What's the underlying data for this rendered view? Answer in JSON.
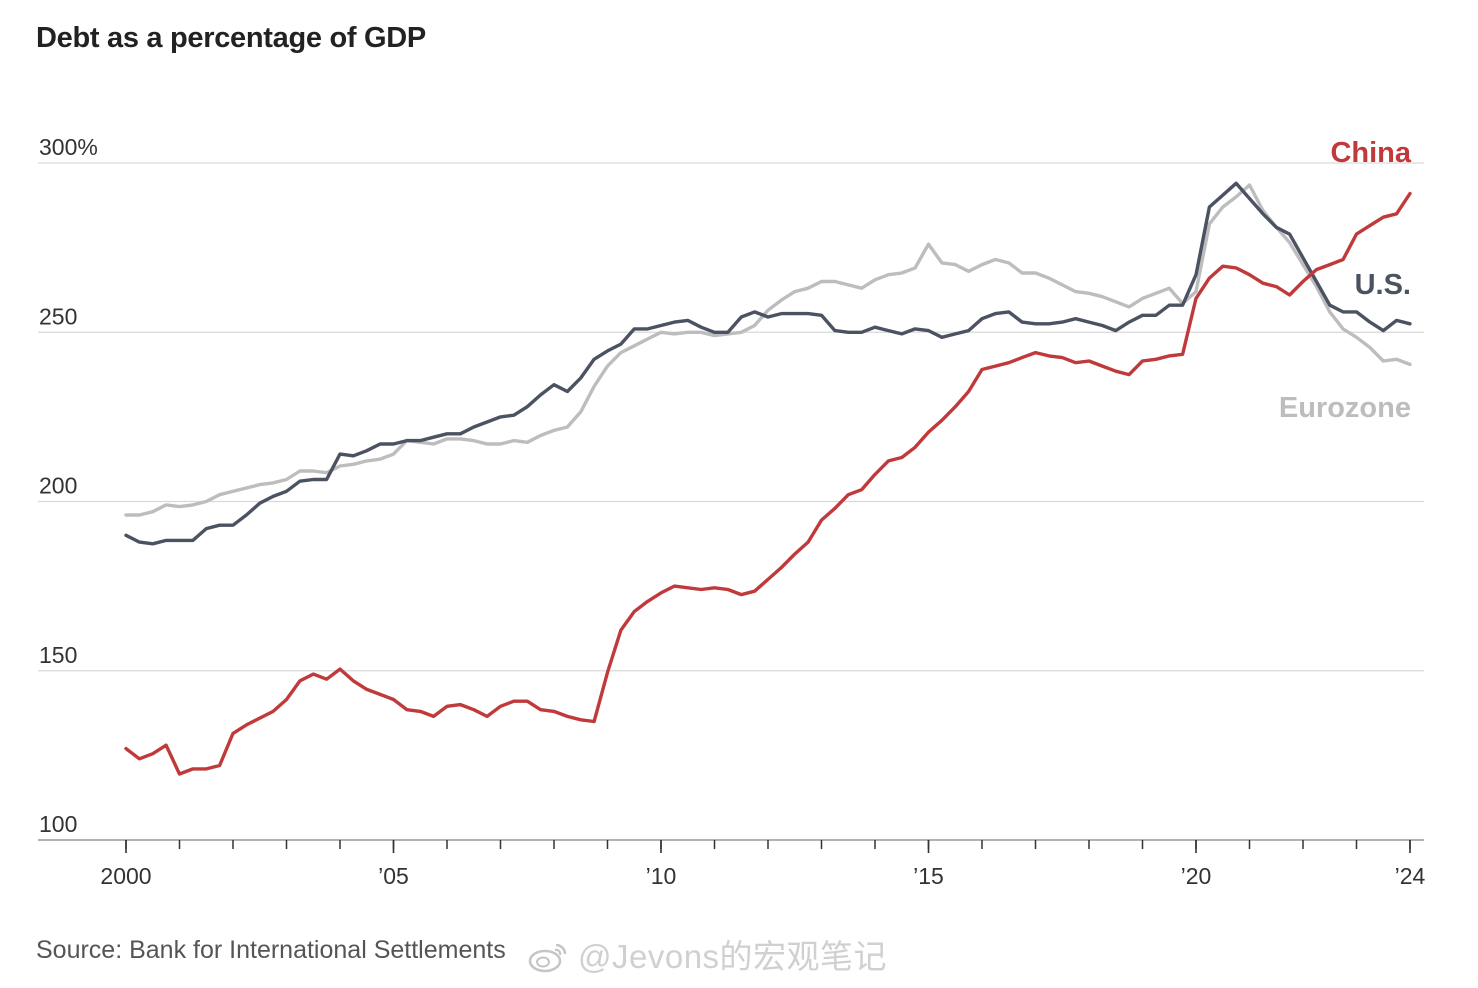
{
  "chart_data": {
    "type": "line",
    "title": "Debt as a percentage of GDP",
    "source": "Source: Bank for International Settlements",
    "xlim": [
      2000.0,
      2024.0
    ],
    "ylim": [
      100,
      300
    ],
    "y_ticks": [
      {
        "value": 300,
        "label": "300%"
      },
      {
        "value": 250,
        "label": "250"
      },
      {
        "value": 200,
        "label": "200"
      },
      {
        "value": 150,
        "label": "150"
      },
      {
        "value": 100,
        "label": "100"
      }
    ],
    "x_ticks": [
      {
        "value": 2000,
        "label": "2000"
      },
      {
        "value": 2005,
        "label": "’05"
      },
      {
        "value": 2010,
        "label": "’10"
      },
      {
        "value": 2015,
        "label": "’15"
      },
      {
        "value": 2020,
        "label": "’20"
      },
      {
        "value": 2024,
        "label": "’24"
      }
    ],
    "grid": true,
    "series": [
      {
        "name": "China",
        "color": "#c0393b",
        "x": [
          2000.0,
          2000.25,
          2000.5,
          2000.75,
          2001.0,
          2001.25,
          2001.5,
          2001.75,
          2002.0,
          2002.25,
          2002.5,
          2002.75,
          2003.0,
          2003.25,
          2003.5,
          2003.75,
          2004.0,
          2004.25,
          2004.5,
          2004.75,
          2005.0,
          2005.25,
          2005.5,
          2005.75,
          2006.0,
          2006.25,
          2006.5,
          2006.75,
          2007.0,
          2007.25,
          2007.5,
          2007.75,
          2008.0,
          2008.25,
          2008.5,
          2008.75,
          2009.0,
          2009.25,
          2009.5,
          2009.75,
          2010.0,
          2010.25,
          2010.5,
          2010.75,
          2011.0,
          2011.25,
          2011.5,
          2011.75,
          2012.0,
          2012.25,
          2012.5,
          2012.75,
          2013.0,
          2013.25,
          2013.5,
          2013.75,
          2014.0,
          2014.25,
          2014.5,
          2014.75,
          2015.0,
          2015.25,
          2015.5,
          2015.75,
          2016.0,
          2016.25,
          2016.5,
          2016.75,
          2017.0,
          2017.25,
          2017.5,
          2017.75,
          2018.0,
          2018.25,
          2018.5,
          2018.75,
          2019.0,
          2019.25,
          2019.5,
          2019.75,
          2020.0,
          2020.25,
          2020.5,
          2020.75,
          2021.0,
          2021.25,
          2021.5,
          2021.75,
          2022.0,
          2022.25,
          2022.5,
          2022.75,
          2023.0,
          2023.25,
          2023.5,
          2023.75,
          2024.0
        ],
        "values": [
          127,
          124,
          125.5,
          128,
          119.5,
          121,
          121,
          122,
          131.5,
          134,
          136,
          138,
          141.5,
          147,
          149,
          147.5,
          150.5,
          147,
          144.5,
          143,
          141.5,
          138.5,
          138,
          136.5,
          139.5,
          140,
          138.5,
          136.5,
          139.5,
          141,
          141,
          138.5,
          138,
          136.5,
          135.5,
          135,
          149.5,
          162,
          167.5,
          170.5,
          173,
          175,
          174.5,
          174,
          174.5,
          174,
          172.5,
          173.5,
          177,
          180.5,
          184.5,
          188,
          194.5,
          198,
          202,
          203.5,
          208,
          212,
          213,
          216,
          220.5,
          224,
          228,
          232.5,
          239,
          240,
          241,
          242.5,
          244,
          243,
          242.5,
          241,
          241.5,
          240,
          238.5,
          237.5,
          241.5,
          242,
          243,
          243.5,
          260,
          266,
          269.5,
          269,
          267,
          264.5,
          263.5,
          261,
          265,
          268.5,
          270,
          271.5,
          279,
          281.5,
          284,
          285,
          291
        ]
      },
      {
        "name": "U.S.",
        "color": "#4b5261",
        "x": [
          2000.0,
          2000.25,
          2000.5,
          2000.75,
          2001.0,
          2001.25,
          2001.5,
          2001.75,
          2002.0,
          2002.25,
          2002.5,
          2002.75,
          2003.0,
          2003.25,
          2003.5,
          2003.75,
          2004.0,
          2004.25,
          2004.5,
          2004.75,
          2005.0,
          2005.25,
          2005.5,
          2005.75,
          2006.0,
          2006.25,
          2006.5,
          2006.75,
          2007.0,
          2007.25,
          2007.5,
          2007.75,
          2008.0,
          2008.25,
          2008.5,
          2008.75,
          2009.0,
          2009.25,
          2009.5,
          2009.75,
          2010.0,
          2010.25,
          2010.5,
          2010.75,
          2011.0,
          2011.25,
          2011.5,
          2011.75,
          2012.0,
          2012.25,
          2012.5,
          2012.75,
          2013.0,
          2013.25,
          2013.5,
          2013.75,
          2014.0,
          2014.25,
          2014.5,
          2014.75,
          2015.0,
          2015.25,
          2015.5,
          2015.75,
          2016.0,
          2016.25,
          2016.5,
          2016.75,
          2017.0,
          2017.25,
          2017.5,
          2017.75,
          2018.0,
          2018.25,
          2018.5,
          2018.75,
          2019.0,
          2019.25,
          2019.5,
          2019.75,
          2020.0,
          2020.25,
          2020.5,
          2020.75,
          2021.0,
          2021.25,
          2021.5,
          2021.75,
          2022.0,
          2022.25,
          2022.5,
          2022.75,
          2023.0,
          2023.25,
          2023.5,
          2023.75,
          2024.0
        ],
        "values": [
          190,
          188,
          187.5,
          188.5,
          188.5,
          188.5,
          192,
          193,
          193,
          196,
          199.5,
          201.5,
          203,
          206,
          206.5,
          206.5,
          214,
          213.5,
          215,
          217,
          217,
          218,
          218,
          219,
          220,
          220,
          222,
          223.5,
          225,
          225.5,
          228,
          231.5,
          234.5,
          232.5,
          236.5,
          242,
          244.5,
          246.5,
          251,
          251,
          252,
          253,
          253.5,
          251.5,
          250,
          250,
          254.5,
          256,
          254.5,
          255.5,
          255.5,
          255.5,
          255,
          250.5,
          250,
          250,
          251.5,
          250.5,
          249.5,
          251,
          250.5,
          248.5,
          249.5,
          250.5,
          254,
          255.5,
          256,
          253,
          252.5,
          252.5,
          253,
          254,
          253,
          252,
          250.5,
          253,
          255,
          255,
          258,
          258,
          267,
          287,
          290.5,
          294,
          289.5,
          285,
          281,
          279,
          272,
          265,
          258,
          256,
          256,
          253,
          250.5,
          253.5,
          252.5
        ]
      },
      {
        "name": "Eurozone",
        "color": "#bdbdbd",
        "x": [
          2000.0,
          2000.25,
          2000.5,
          2000.75,
          2001.0,
          2001.25,
          2001.5,
          2001.75,
          2002.0,
          2002.25,
          2002.5,
          2002.75,
          2003.0,
          2003.25,
          2003.5,
          2003.75,
          2004.0,
          2004.25,
          2004.5,
          2004.75,
          2005.0,
          2005.25,
          2005.5,
          2005.75,
          2006.0,
          2006.25,
          2006.5,
          2006.75,
          2007.0,
          2007.25,
          2007.5,
          2007.75,
          2008.0,
          2008.25,
          2008.5,
          2008.75,
          2009.0,
          2009.25,
          2009.5,
          2009.75,
          2010.0,
          2010.25,
          2010.5,
          2010.75,
          2011.0,
          2011.25,
          2011.5,
          2011.75,
          2012.0,
          2012.25,
          2012.5,
          2012.75,
          2013.0,
          2013.25,
          2013.5,
          2013.75,
          2014.0,
          2014.25,
          2014.5,
          2014.75,
          2015.0,
          2015.25,
          2015.5,
          2015.75,
          2016.0,
          2016.25,
          2016.5,
          2016.75,
          2017.0,
          2017.25,
          2017.5,
          2017.75,
          2018.0,
          2018.25,
          2018.5,
          2018.75,
          2019.0,
          2019.25,
          2019.5,
          2019.75,
          2020.0,
          2020.25,
          2020.5,
          2020.75,
          2021.0,
          2021.25,
          2021.5,
          2021.75,
          2022.0,
          2022.25,
          2022.5,
          2022.75,
          2023.0,
          2023.25,
          2023.5,
          2023.75,
          2024.0
        ],
        "values": [
          196,
          196,
          197,
          199,
          198.5,
          199,
          200,
          202,
          203,
          204,
          205,
          205.5,
          206.5,
          209,
          209,
          208.5,
          210.5,
          211,
          212,
          212.5,
          214,
          218,
          217.5,
          217,
          218.5,
          218.5,
          218,
          217,
          217,
          218,
          217.5,
          219.5,
          221,
          222,
          226.5,
          234,
          240,
          244,
          246,
          248,
          250,
          249.5,
          250,
          250,
          249,
          249.5,
          250,
          252,
          256.5,
          259.5,
          262,
          263,
          265,
          265,
          264,
          263,
          265.5,
          267,
          267.5,
          269,
          276,
          270.5,
          270,
          268,
          270,
          271.5,
          270.5,
          267.5,
          267.5,
          266,
          264,
          262,
          261.5,
          260.5,
          259,
          257.5,
          260,
          261.5,
          263,
          258.5,
          262,
          282,
          287,
          290,
          293.5,
          286,
          281,
          276.5,
          270,
          263.5,
          256,
          251,
          248.5,
          245.5,
          241.5,
          242,
          240.5
        ]
      }
    ]
  },
  "watermark": "@Jevons的宏观笔记"
}
